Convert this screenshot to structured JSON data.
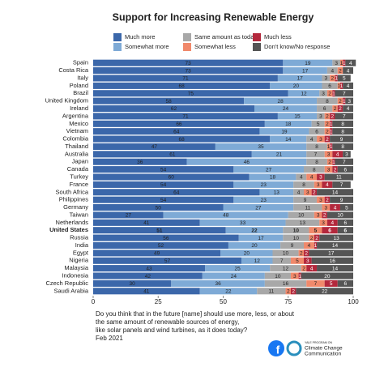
{
  "chart_data": {
    "type": "stacked_barh",
    "title": "Support for Increasing Renewable Energy",
    "categories": [
      "Spain",
      "Costa Rica",
      "Italy",
      "Poland",
      "Brazil",
      "United Kingdom",
      "Ireland",
      "Argentina",
      "Mexico",
      "Vietnam",
      "Colombia",
      "Thailand",
      "Australia",
      "Japan",
      "Canada",
      "Turkey",
      "France",
      "South Africa",
      "Philippines",
      "Germany",
      "Taiwan",
      "Netherlands",
      "United States",
      "Russia",
      "India",
      "Egypt",
      "Nigeria",
      "Malaysia",
      "Indonesia",
      "Czech Republic",
      "Saudi Arabia"
    ],
    "highlight_category": "United States",
    "series": [
      {
        "name": "Much more",
        "color": "#3b67aa",
        "values": [
          73,
          73,
          71,
          68,
          75,
          58,
          62,
          71,
          66,
          64,
          68,
          47,
          61,
          36,
          54,
          60,
          54,
          64,
          54,
          50,
          27,
          41,
          51,
          56,
          52,
          49,
          57,
          43,
          42,
          30,
          41
        ]
      },
      {
        "name": "Somewhat more",
        "color": "#7eaad6",
        "values": [
          19,
          17,
          17,
          20,
          12,
          28,
          24,
          15,
          18,
          19,
          14,
          35,
          21,
          46,
          27,
          18,
          23,
          13,
          23,
          27,
          48,
          33,
          22,
          17,
          20,
          20,
          12,
          25,
          24,
          36,
          22
        ]
      },
      {
        "name": "Same amount as today",
        "color": "#a8a8a8",
        "values": [
          3,
          4,
          3,
          6,
          3,
          8,
          6,
          3,
          5,
          6,
          4,
          8,
          7,
          8,
          8,
          4,
          8,
          4,
          9,
          11,
          10,
          13,
          10,
          10,
          9,
          10,
          7,
          12,
          10,
          16,
          11
        ]
      },
      {
        "name": "Somewhat less",
        "color": "#f0896b",
        "values": [
          1,
          2,
          2,
          1,
          2,
          2,
          2,
          2,
          2,
          2,
          3,
          1,
          3,
          2,
          3,
          4,
          3,
          3,
          3,
          3,
          3,
          3,
          5,
          2,
          4,
          2,
          5,
          2,
          3,
          7,
          2
        ]
      },
      {
        "name": "Much less",
        "color": "#b3283c",
        "values": [
          1,
          0,
          1,
          1,
          1,
          1,
          2,
          2,
          1,
          1,
          2,
          1,
          4,
          1,
          2,
          3,
          4,
          2,
          2,
          4,
          2,
          4,
          6,
          2,
          1,
          2,
          3,
          4,
          1,
          5,
          2
        ]
      },
      {
        "name": "Don't know/No response",
        "color": "#555555",
        "values": [
          4,
          4,
          5,
          4,
          7,
          3,
          4,
          7,
          8,
          8,
          9,
          8,
          3,
          7,
          6,
          11,
          7,
          14,
          9,
          5,
          10,
          6,
          6,
          13,
          14,
          17,
          16,
          14,
          20,
          6,
          22
        ]
      }
    ],
    "xlim": [
      0,
      100
    ],
    "xticks": [
      0,
      25,
      50,
      75,
      100
    ],
    "footer": [
      "Do you think that in the future [name] should use more, less, or about",
      "the same amount of renewable sources of energy,",
      "like solar panels and wind turbines, as it does today?",
      "Feb 2021"
    ],
    "logo_text": [
      "YALE PROGRAM ON",
      "Climate Change",
      "Communication"
    ]
  }
}
